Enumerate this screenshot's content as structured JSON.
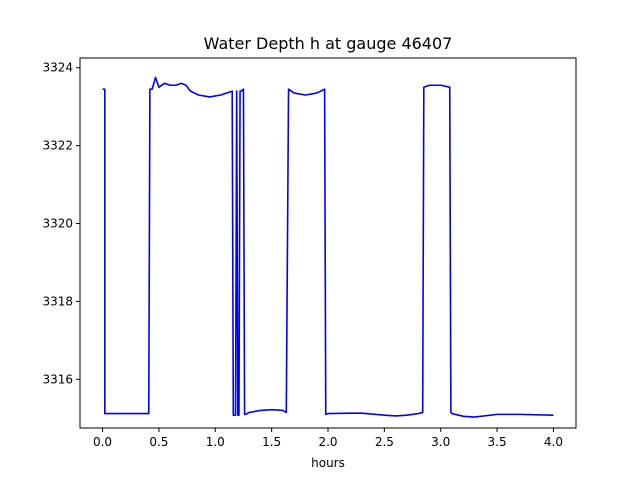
{
  "chart_data": {
    "type": "line",
    "title": "Water Depth h at gauge 46407",
    "xlabel": "hours",
    "ylabel": "",
    "xlim": [
      -0.2,
      4.2
    ],
    "ylim": [
      3314.75,
      3324.25
    ],
    "xticks": [
      0.0,
      0.5,
      1.0,
      1.5,
      2.0,
      2.5,
      3.0,
      3.5,
      4.0
    ],
    "xtick_labels": [
      "0.0",
      "0.5",
      "1.0",
      "1.5",
      "2.0",
      "2.5",
      "3.0",
      "3.5",
      "4.0"
    ],
    "yticks": [
      3316,
      3318,
      3320,
      3322,
      3324
    ],
    "ytick_labels": [
      "3316",
      "3318",
      "3320",
      "3322",
      "3324"
    ],
    "grid": false,
    "series": [
      {
        "color": "#0000ff",
        "x": [
          0.0,
          0.02,
          0.02,
          0.41,
          0.42,
          0.44,
          0.47,
          0.5,
          0.55,
          0.6,
          0.65,
          0.7,
          0.74,
          0.78,
          0.85,
          0.95,
          1.05,
          1.15,
          1.16,
          1.18,
          1.19,
          1.2,
          1.21,
          1.22,
          1.23,
          1.25,
          1.26,
          1.27,
          1.3,
          1.4,
          1.5,
          1.6,
          1.63,
          1.65,
          1.7,
          1.8,
          1.9,
          1.97,
          1.98,
          2.0,
          2.2,
          2.3,
          2.5,
          2.6,
          2.7,
          2.8,
          2.84,
          2.85,
          2.9,
          3.0,
          3.08,
          3.09,
          3.1,
          3.2,
          3.3,
          3.5,
          3.7,
          4.0
        ],
        "y": [
          3323.45,
          3323.45,
          3315.12,
          3315.12,
          3323.45,
          3323.45,
          3323.75,
          3323.5,
          3323.6,
          3323.55,
          3323.55,
          3323.6,
          3323.55,
          3323.4,
          3323.3,
          3323.25,
          3323.3,
          3323.4,
          3315.08,
          3315.08,
          3323.4,
          3315.08,
          3315.08,
          3323.4,
          3323.4,
          3323.45,
          3315.1,
          3315.1,
          3315.15,
          3315.2,
          3315.22,
          3315.2,
          3315.15,
          3323.45,
          3323.35,
          3323.3,
          3323.35,
          3323.45,
          3315.1,
          3315.12,
          3315.13,
          3315.13,
          3315.08,
          3315.06,
          3315.08,
          3315.12,
          3315.15,
          3323.5,
          3323.55,
          3323.55,
          3323.5,
          3315.15,
          3315.12,
          3315.05,
          3315.03,
          3315.1,
          3315.1,
          3315.08
        ]
      }
    ]
  }
}
